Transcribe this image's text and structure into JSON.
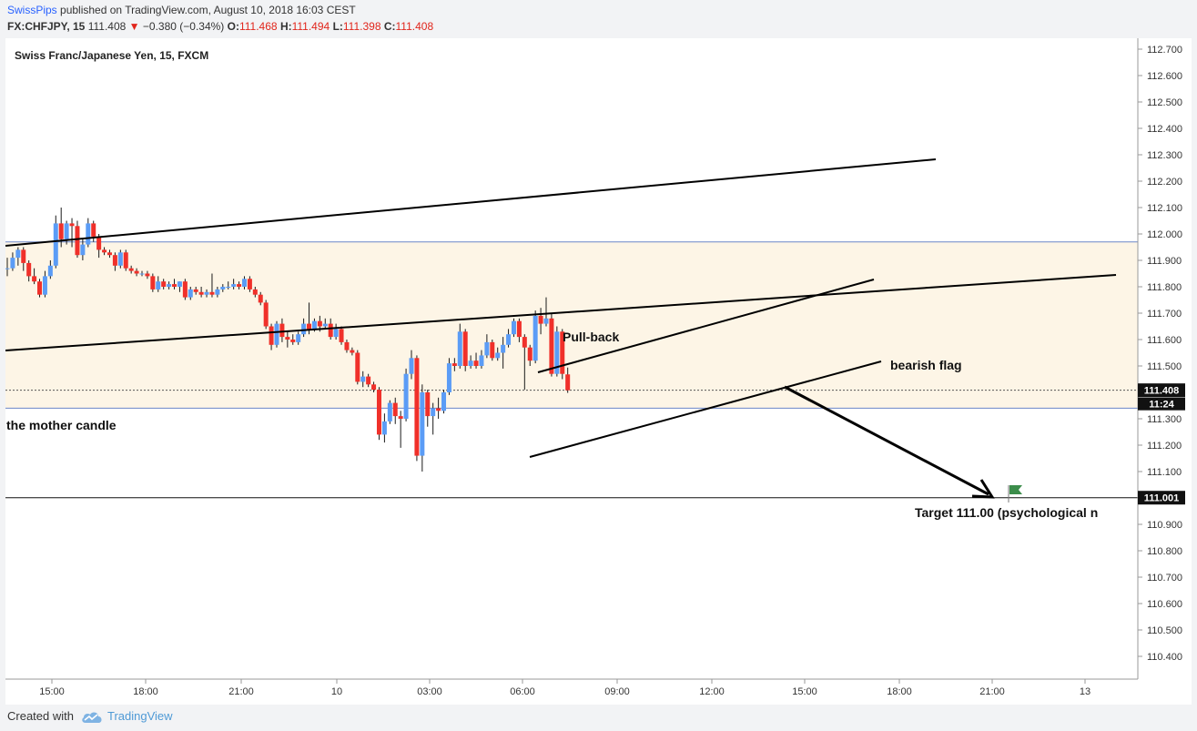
{
  "header": {
    "author": "SwissPips",
    "published": "published on TradingView.com, August 10, 2018 16:03 CEST",
    "symbol": "FX:CHFJPY, 15",
    "last": "111.408",
    "change": "−0.380 (−0.34%)",
    "open_label": "O:",
    "open": "111.468",
    "high_label": "H:",
    "high": "111.494",
    "low_label": "L:",
    "low": "111.398",
    "close_label": "C:",
    "close": "111.408"
  },
  "footer": {
    "created_with": "Created with",
    "brand": "TradingView",
    "logo_icon": "tradingview-cloud-icon"
  },
  "chart_data": {
    "type": "candlestick",
    "title": "Swiss Franc/Japanese Yen, 15, FXCM",
    "ylim": [
      110.3,
      112.75
    ],
    "y_ticks": [
      "112.700",
      "112.600",
      "112.500",
      "112.400",
      "112.300",
      "112.200",
      "112.100",
      "112.000",
      "111.900",
      "111.800",
      "111.700",
      "111.600",
      "111.500",
      "111.400",
      "111.300",
      "111.200",
      "111.100",
      "111.000",
      "110.900",
      "110.800",
      "110.700",
      "110.600",
      "110.500",
      "110.400"
    ],
    "x_ticks": [
      "15:00",
      "18:00",
      "21:00",
      "10",
      "03:00",
      "06:00",
      "09:00",
      "12:00",
      "15:00",
      "18:00",
      "21:00",
      "13"
    ],
    "colors": {
      "up": "#5b9cf6",
      "down": "#f0302a",
      "zone": "#fdf5e6",
      "levels": "#6b86c7"
    },
    "zone": {
      "from": 111.34,
      "to": 111.97
    },
    "current_price": {
      "value": 111.408,
      "label": "111.408",
      "countdown": "11:24"
    },
    "target_level": {
      "value": 111.001,
      "label": "111.001"
    },
    "candles": [
      {
        "o": 111.87,
        "h": 111.91,
        "l": 111.84,
        "c": 111.87
      },
      {
        "o": 111.87,
        "h": 111.93,
        "l": 111.86,
        "c": 111.91
      },
      {
        "o": 111.91,
        "h": 111.95,
        "l": 111.88,
        "c": 111.94
      },
      {
        "o": 111.94,
        "h": 111.95,
        "l": 111.86,
        "c": 111.89
      },
      {
        "o": 111.89,
        "h": 111.9,
        "l": 111.82,
        "c": 111.84
      },
      {
        "o": 111.84,
        "h": 111.87,
        "l": 111.81,
        "c": 111.82
      },
      {
        "o": 111.82,
        "h": 111.83,
        "l": 111.76,
        "c": 111.77
      },
      {
        "o": 111.77,
        "h": 111.86,
        "l": 111.76,
        "c": 111.84
      },
      {
        "o": 111.84,
        "h": 111.9,
        "l": 111.83,
        "c": 111.88
      },
      {
        "o": 111.88,
        "h": 112.07,
        "l": 111.87,
        "c": 112.04
      },
      {
        "o": 112.04,
        "h": 112.1,
        "l": 111.95,
        "c": 111.98
      },
      {
        "o": 111.98,
        "h": 112.05,
        "l": 111.96,
        "c": 112.04
      },
      {
        "o": 112.04,
        "h": 112.06,
        "l": 111.95,
        "c": 112.03
      },
      {
        "o": 112.03,
        "h": 112.05,
        "l": 111.91,
        "c": 111.92
      },
      {
        "o": 111.92,
        "h": 111.98,
        "l": 111.9,
        "c": 111.96
      },
      {
        "o": 111.96,
        "h": 112.06,
        "l": 111.95,
        "c": 112.04
      },
      {
        "o": 112.04,
        "h": 112.05,
        "l": 111.97,
        "c": 111.99
      },
      {
        "o": 111.99,
        "h": 112.0,
        "l": 111.91,
        "c": 111.94
      },
      {
        "o": 111.94,
        "h": 111.95,
        "l": 111.92,
        "c": 111.93
      },
      {
        "o": 111.93,
        "h": 111.94,
        "l": 111.91,
        "c": 111.92
      },
      {
        "o": 111.92,
        "h": 111.93,
        "l": 111.86,
        "c": 111.88
      },
      {
        "o": 111.88,
        "h": 111.94,
        "l": 111.87,
        "c": 111.93
      },
      {
        "o": 111.93,
        "h": 111.94,
        "l": 111.86,
        "c": 111.87
      },
      {
        "o": 111.87,
        "h": 111.88,
        "l": 111.85,
        "c": 111.86
      },
      {
        "o": 111.86,
        "h": 111.87,
        "l": 111.84,
        "c": 111.85
      },
      {
        "o": 111.85,
        "h": 111.86,
        "l": 111.84,
        "c": 111.85
      },
      {
        "o": 111.85,
        "h": 111.86,
        "l": 111.83,
        "c": 111.84
      },
      {
        "o": 111.84,
        "h": 111.85,
        "l": 111.78,
        "c": 111.79
      },
      {
        "o": 111.79,
        "h": 111.84,
        "l": 111.78,
        "c": 111.82
      },
      {
        "o": 111.82,
        "h": 111.83,
        "l": 111.79,
        "c": 111.8
      },
      {
        "o": 111.8,
        "h": 111.82,
        "l": 111.79,
        "c": 111.81
      },
      {
        "o": 111.81,
        "h": 111.83,
        "l": 111.79,
        "c": 111.8
      },
      {
        "o": 111.8,
        "h": 111.82,
        "l": 111.78,
        "c": 111.82
      },
      {
        "o": 111.82,
        "h": 111.83,
        "l": 111.75,
        "c": 111.76
      },
      {
        "o": 111.76,
        "h": 111.8,
        "l": 111.75,
        "c": 111.79
      },
      {
        "o": 111.79,
        "h": 111.8,
        "l": 111.77,
        "c": 111.78
      },
      {
        "o": 111.78,
        "h": 111.8,
        "l": 111.76,
        "c": 111.77
      },
      {
        "o": 111.77,
        "h": 111.79,
        "l": 111.76,
        "c": 111.78
      },
      {
        "o": 111.78,
        "h": 111.85,
        "l": 111.76,
        "c": 111.77
      },
      {
        "o": 111.77,
        "h": 111.8,
        "l": 111.76,
        "c": 111.79
      },
      {
        "o": 111.79,
        "h": 111.81,
        "l": 111.78,
        "c": 111.8
      },
      {
        "o": 111.8,
        "h": 111.82,
        "l": 111.79,
        "c": 111.8
      },
      {
        "o": 111.8,
        "h": 111.83,
        "l": 111.79,
        "c": 111.81
      },
      {
        "o": 111.81,
        "h": 111.82,
        "l": 111.79,
        "c": 111.8
      },
      {
        "o": 111.8,
        "h": 111.84,
        "l": 111.79,
        "c": 111.83
      },
      {
        "o": 111.83,
        "h": 111.84,
        "l": 111.78,
        "c": 111.79
      },
      {
        "o": 111.79,
        "h": 111.8,
        "l": 111.76,
        "c": 111.77
      },
      {
        "o": 111.77,
        "h": 111.78,
        "l": 111.73,
        "c": 111.74
      },
      {
        "o": 111.74,
        "h": 111.75,
        "l": 111.64,
        "c": 111.65
      },
      {
        "o": 111.65,
        "h": 111.66,
        "l": 111.56,
        "c": 111.58
      },
      {
        "o": 111.58,
        "h": 111.67,
        "l": 111.57,
        "c": 111.66
      },
      {
        "o": 111.66,
        "h": 111.68,
        "l": 111.59,
        "c": 111.61
      },
      {
        "o": 111.61,
        "h": 111.63,
        "l": 111.57,
        "c": 111.6
      },
      {
        "o": 111.6,
        "h": 111.62,
        "l": 111.58,
        "c": 111.59
      },
      {
        "o": 111.59,
        "h": 111.63,
        "l": 111.58,
        "c": 111.62
      },
      {
        "o": 111.62,
        "h": 111.68,
        "l": 111.61,
        "c": 111.66
      },
      {
        "o": 111.66,
        "h": 111.74,
        "l": 111.62,
        "c": 111.64
      },
      {
        "o": 111.64,
        "h": 111.68,
        "l": 111.63,
        "c": 111.67
      },
      {
        "o": 111.67,
        "h": 111.69,
        "l": 111.63,
        "c": 111.65
      },
      {
        "o": 111.65,
        "h": 111.68,
        "l": 111.64,
        "c": 111.66
      },
      {
        "o": 111.66,
        "h": 111.68,
        "l": 111.6,
        "c": 111.61
      },
      {
        "o": 111.61,
        "h": 111.66,
        "l": 111.6,
        "c": 111.64
      },
      {
        "o": 111.64,
        "h": 111.65,
        "l": 111.58,
        "c": 111.59
      },
      {
        "o": 111.59,
        "h": 111.6,
        "l": 111.55,
        "c": 111.56
      },
      {
        "o": 111.56,
        "h": 111.57,
        "l": 111.54,
        "c": 111.55
      },
      {
        "o": 111.55,
        "h": 111.56,
        "l": 111.43,
        "c": 111.44
      },
      {
        "o": 111.44,
        "h": 111.48,
        "l": 111.42,
        "c": 111.46
      },
      {
        "o": 111.46,
        "h": 111.47,
        "l": 111.42,
        "c": 111.43
      },
      {
        "o": 111.43,
        "h": 111.44,
        "l": 111.4,
        "c": 111.41
      },
      {
        "o": 111.41,
        "h": 111.42,
        "l": 111.22,
        "c": 111.24
      },
      {
        "o": 111.24,
        "h": 111.32,
        "l": 111.21,
        "c": 111.29
      },
      {
        "o": 111.29,
        "h": 111.37,
        "l": 111.28,
        "c": 111.36
      },
      {
        "o": 111.36,
        "h": 111.38,
        "l": 111.28,
        "c": 111.31
      },
      {
        "o": 111.31,
        "h": 111.33,
        "l": 111.19,
        "c": 111.3
      },
      {
        "o": 111.3,
        "h": 111.49,
        "l": 111.29,
        "c": 111.47
      },
      {
        "o": 111.47,
        "h": 111.56,
        "l": 111.45,
        "c": 111.53
      },
      {
        "o": 111.53,
        "h": 111.54,
        "l": 111.14,
        "c": 111.16
      },
      {
        "o": 111.16,
        "h": 111.43,
        "l": 111.1,
        "c": 111.4
      },
      {
        "o": 111.4,
        "h": 111.41,
        "l": 111.27,
        "c": 111.31
      },
      {
        "o": 111.31,
        "h": 111.36,
        "l": 111.24,
        "c": 111.34
      },
      {
        "o": 111.34,
        "h": 111.38,
        "l": 111.3,
        "c": 111.33
      },
      {
        "o": 111.33,
        "h": 111.41,
        "l": 111.32,
        "c": 111.4
      },
      {
        "o": 111.4,
        "h": 111.53,
        "l": 111.39,
        "c": 111.51
      },
      {
        "o": 111.51,
        "h": 111.53,
        "l": 111.48,
        "c": 111.5
      },
      {
        "o": 111.5,
        "h": 111.66,
        "l": 111.49,
        "c": 111.63
      },
      {
        "o": 111.63,
        "h": 111.64,
        "l": 111.48,
        "c": 111.5
      },
      {
        "o": 111.5,
        "h": 111.54,
        "l": 111.49,
        "c": 111.52
      },
      {
        "o": 111.52,
        "h": 111.55,
        "l": 111.49,
        "c": 111.5
      },
      {
        "o": 111.5,
        "h": 111.56,
        "l": 111.49,
        "c": 111.54
      },
      {
        "o": 111.54,
        "h": 111.62,
        "l": 111.53,
        "c": 111.59
      },
      {
        "o": 111.59,
        "h": 111.6,
        "l": 111.52,
        "c": 111.53
      },
      {
        "o": 111.53,
        "h": 111.57,
        "l": 111.52,
        "c": 111.55
      },
      {
        "o": 111.55,
        "h": 111.61,
        "l": 111.49,
        "c": 111.58
      },
      {
        "o": 111.58,
        "h": 111.64,
        "l": 111.57,
        "c": 111.62
      },
      {
        "o": 111.62,
        "h": 111.68,
        "l": 111.61,
        "c": 111.67
      },
      {
        "o": 111.67,
        "h": 111.68,
        "l": 111.59,
        "c": 111.61
      },
      {
        "o": 111.61,
        "h": 111.62,
        "l": 111.41,
        "c": 111.57
      },
      {
        "o": 111.57,
        "h": 111.58,
        "l": 111.5,
        "c": 111.52
      },
      {
        "o": 111.52,
        "h": 111.71,
        "l": 111.51,
        "c": 111.69
      },
      {
        "o": 111.69,
        "h": 111.72,
        "l": 111.62,
        "c": 111.66
      },
      {
        "o": 111.66,
        "h": 111.76,
        "l": 111.65,
        "c": 111.68
      },
      {
        "o": 111.68,
        "h": 111.7,
        "l": 111.46,
        "c": 111.47
      },
      {
        "o": 111.47,
        "h": 111.65,
        "l": 111.46,
        "c": 111.63
      },
      {
        "o": 111.63,
        "h": 111.64,
        "l": 111.45,
        "c": 111.47
      },
      {
        "o": 111.468,
        "h": 111.494,
        "l": 111.398,
        "c": 111.408
      }
    ],
    "annotations": {
      "labels": [
        "Pull-back",
        "bearish flag",
        "the mother candle",
        "Target 111.00  (psychological n"
      ]
    }
  }
}
